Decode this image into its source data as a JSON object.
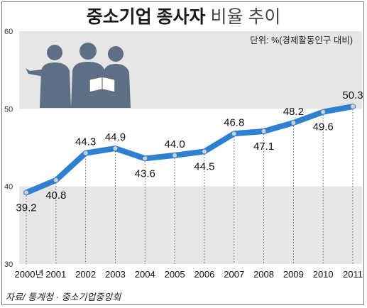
{
  "title_bold": "중소기업 종사자",
  "title_rest": "비율 추이",
  "unit_label": "단위: %(경제활동인구 대비)",
  "source": "자료/ 통계청 · 중소기업중앙회",
  "colors": {
    "line": "#2f80d0",
    "marker_fill": "#cfd0d2",
    "band": "#e6e6e6",
    "figures": "#5e6e84"
  },
  "chart_data": {
    "type": "line",
    "title": "중소기업 종사자 비율 추이",
    "unit": "단위: %(경제활동인구 대비)",
    "x": [
      "2000년",
      "2001",
      "2002",
      "2003",
      "2004",
      "2005",
      "2006",
      "2007",
      "2008",
      "2009",
      "2010",
      "2011"
    ],
    "series": [
      {
        "values": [
          39.2,
          40.8,
          44.3,
          44.9,
          43.6,
          44.0,
          44.5,
          46.8,
          47.1,
          48.2,
          49.6,
          50.3
        ]
      }
    ],
    "value_labels": [
      "39.2",
      "40.8",
      "44.3",
      "44.9",
      "43.6",
      "44.0",
      "44.5",
      "46.8",
      "47.1",
      "48.2",
      "49.6",
      "50.3"
    ],
    "label_positions": [
      "below",
      "below",
      "above",
      "above",
      "below",
      "above",
      "below",
      "above",
      "below",
      "above",
      "below",
      "above"
    ],
    "yticks": [
      "30",
      "40",
      "50",
      "60"
    ],
    "ylim": [
      30,
      60
    ],
    "bands": [
      [
        50,
        60
      ],
      [
        30,
        40
      ]
    ],
    "grid": false,
    "legend": "none"
  }
}
